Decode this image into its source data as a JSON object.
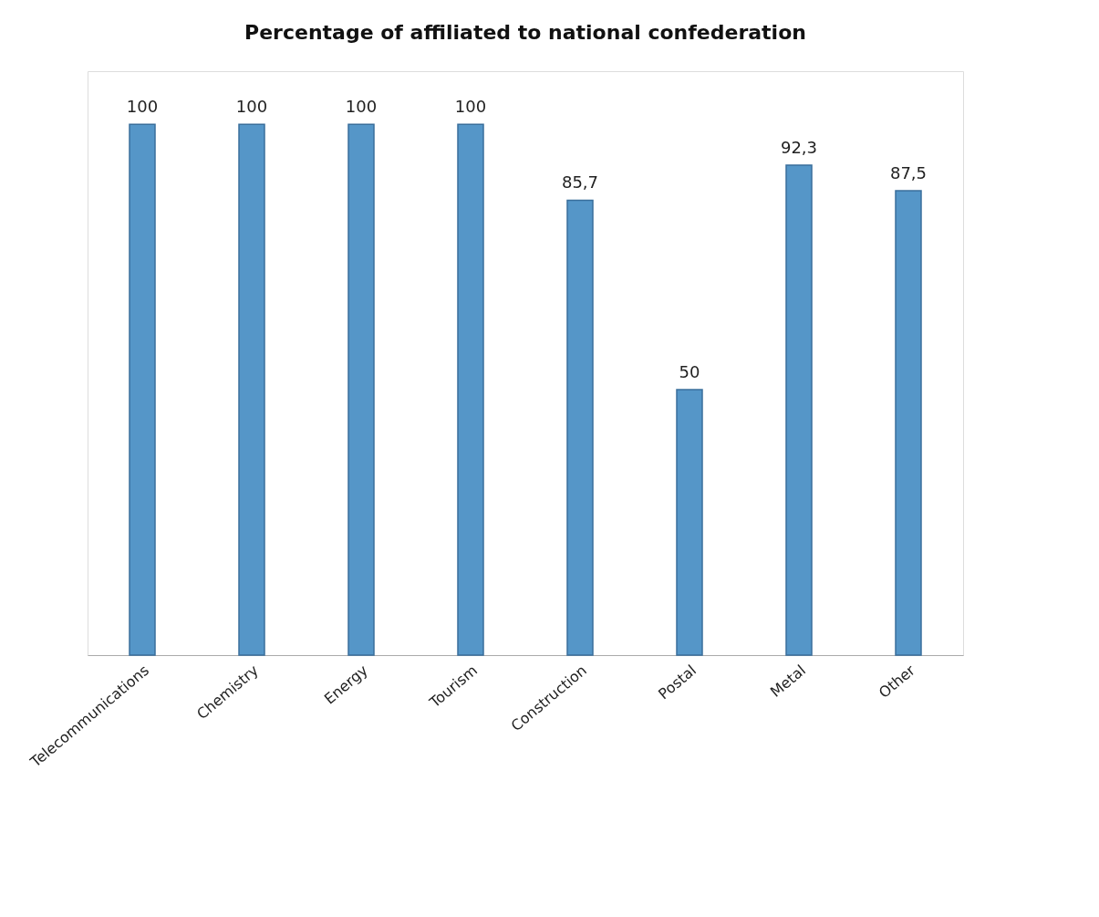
{
  "chart_data": {
    "type": "bar",
    "title": "Percentage of affiliated to national confederation",
    "categories": [
      "Telecommunications",
      "Chemistry",
      "Energy",
      "Tourism",
      "Construction",
      "Postal",
      "Metal",
      "Other"
    ],
    "values": [
      100,
      100,
      100,
      100,
      85.7,
      50,
      92.3,
      87.5
    ],
    "value_labels": [
      "100",
      "100",
      "100",
      "100",
      "85,7",
      "50",
      "92,3",
      "87,5"
    ],
    "color": "#5596c8",
    "grid": false
  }
}
